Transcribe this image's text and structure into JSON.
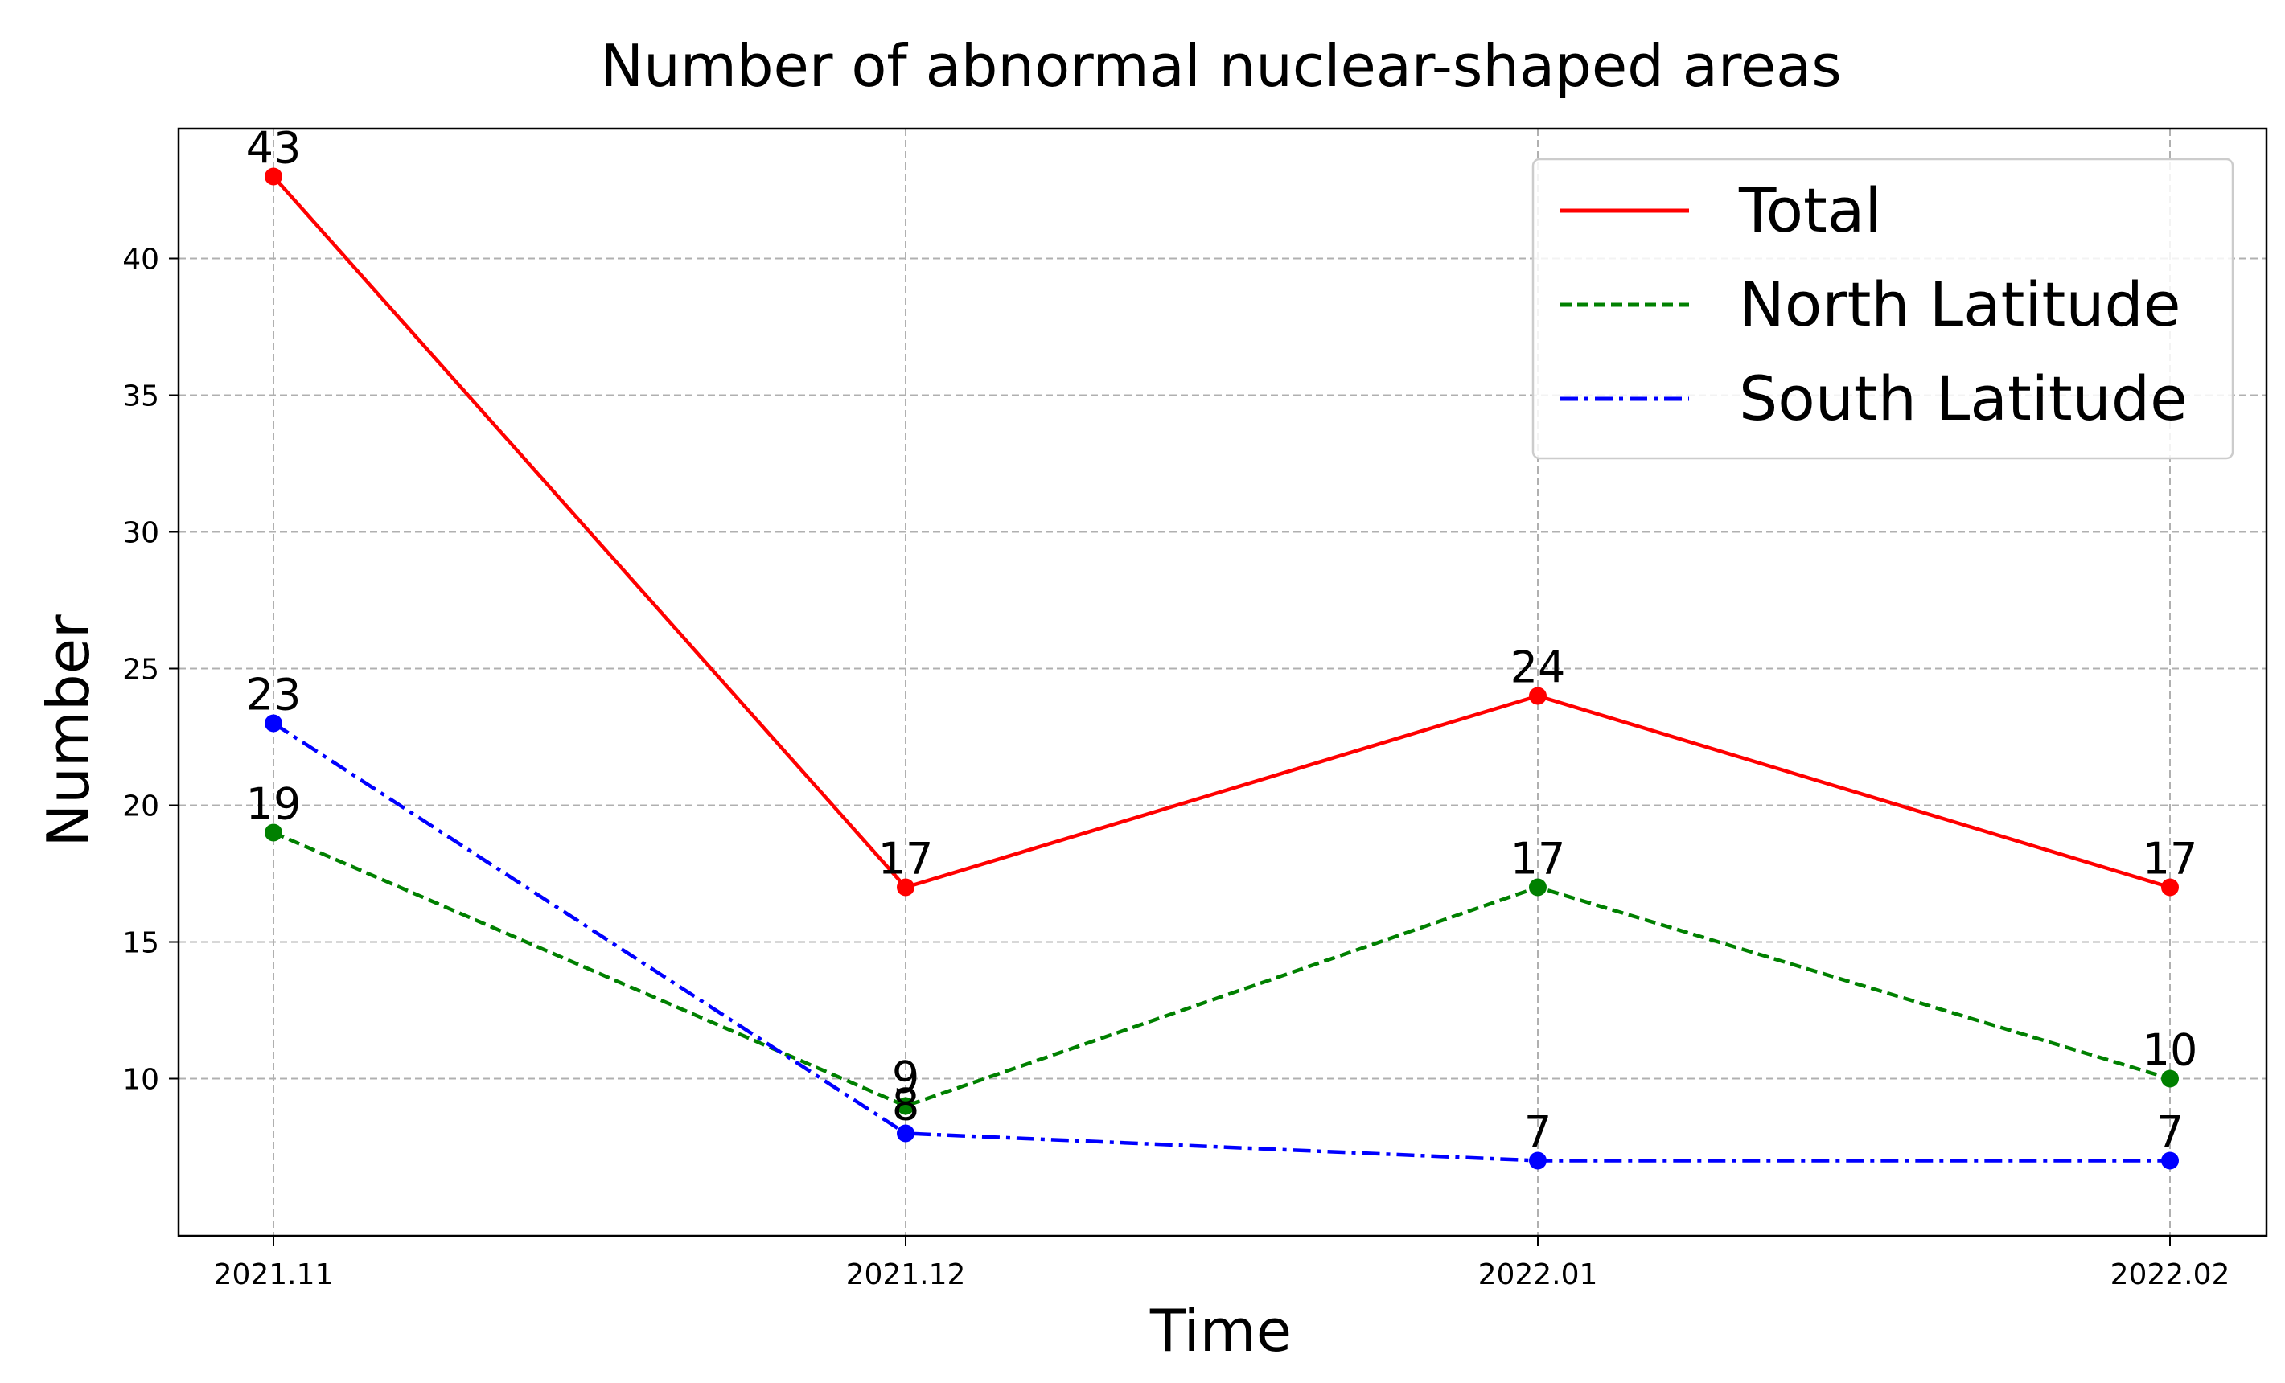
{
  "chart_data": {
    "type": "line",
    "title": "Number of abnormal nuclear-shaped areas",
    "xlabel": "Time",
    "ylabel": "Number",
    "categories": [
      "2021.11",
      "2021.12",
      "2022.01",
      "2022.02"
    ],
    "y_ticks": [
      10,
      15,
      20,
      25,
      30,
      35,
      40
    ],
    "ylim": [
      4.25,
      44.75
    ],
    "grid": true,
    "legend_position": "top-right",
    "series": [
      {
        "name": "Total",
        "values": [
          43,
          17,
          24,
          17
        ],
        "color": "#ff0000",
        "line_style": "solid"
      },
      {
        "name": "North Latitude",
        "values": [
          19,
          9,
          17,
          10
        ],
        "color": "#008000",
        "line_style": "dashed"
      },
      {
        "name": "South Latitude",
        "values": [
          23,
          8,
          7,
          7
        ],
        "color": "#0000ff",
        "line_style": "dashdot"
      }
    ]
  }
}
